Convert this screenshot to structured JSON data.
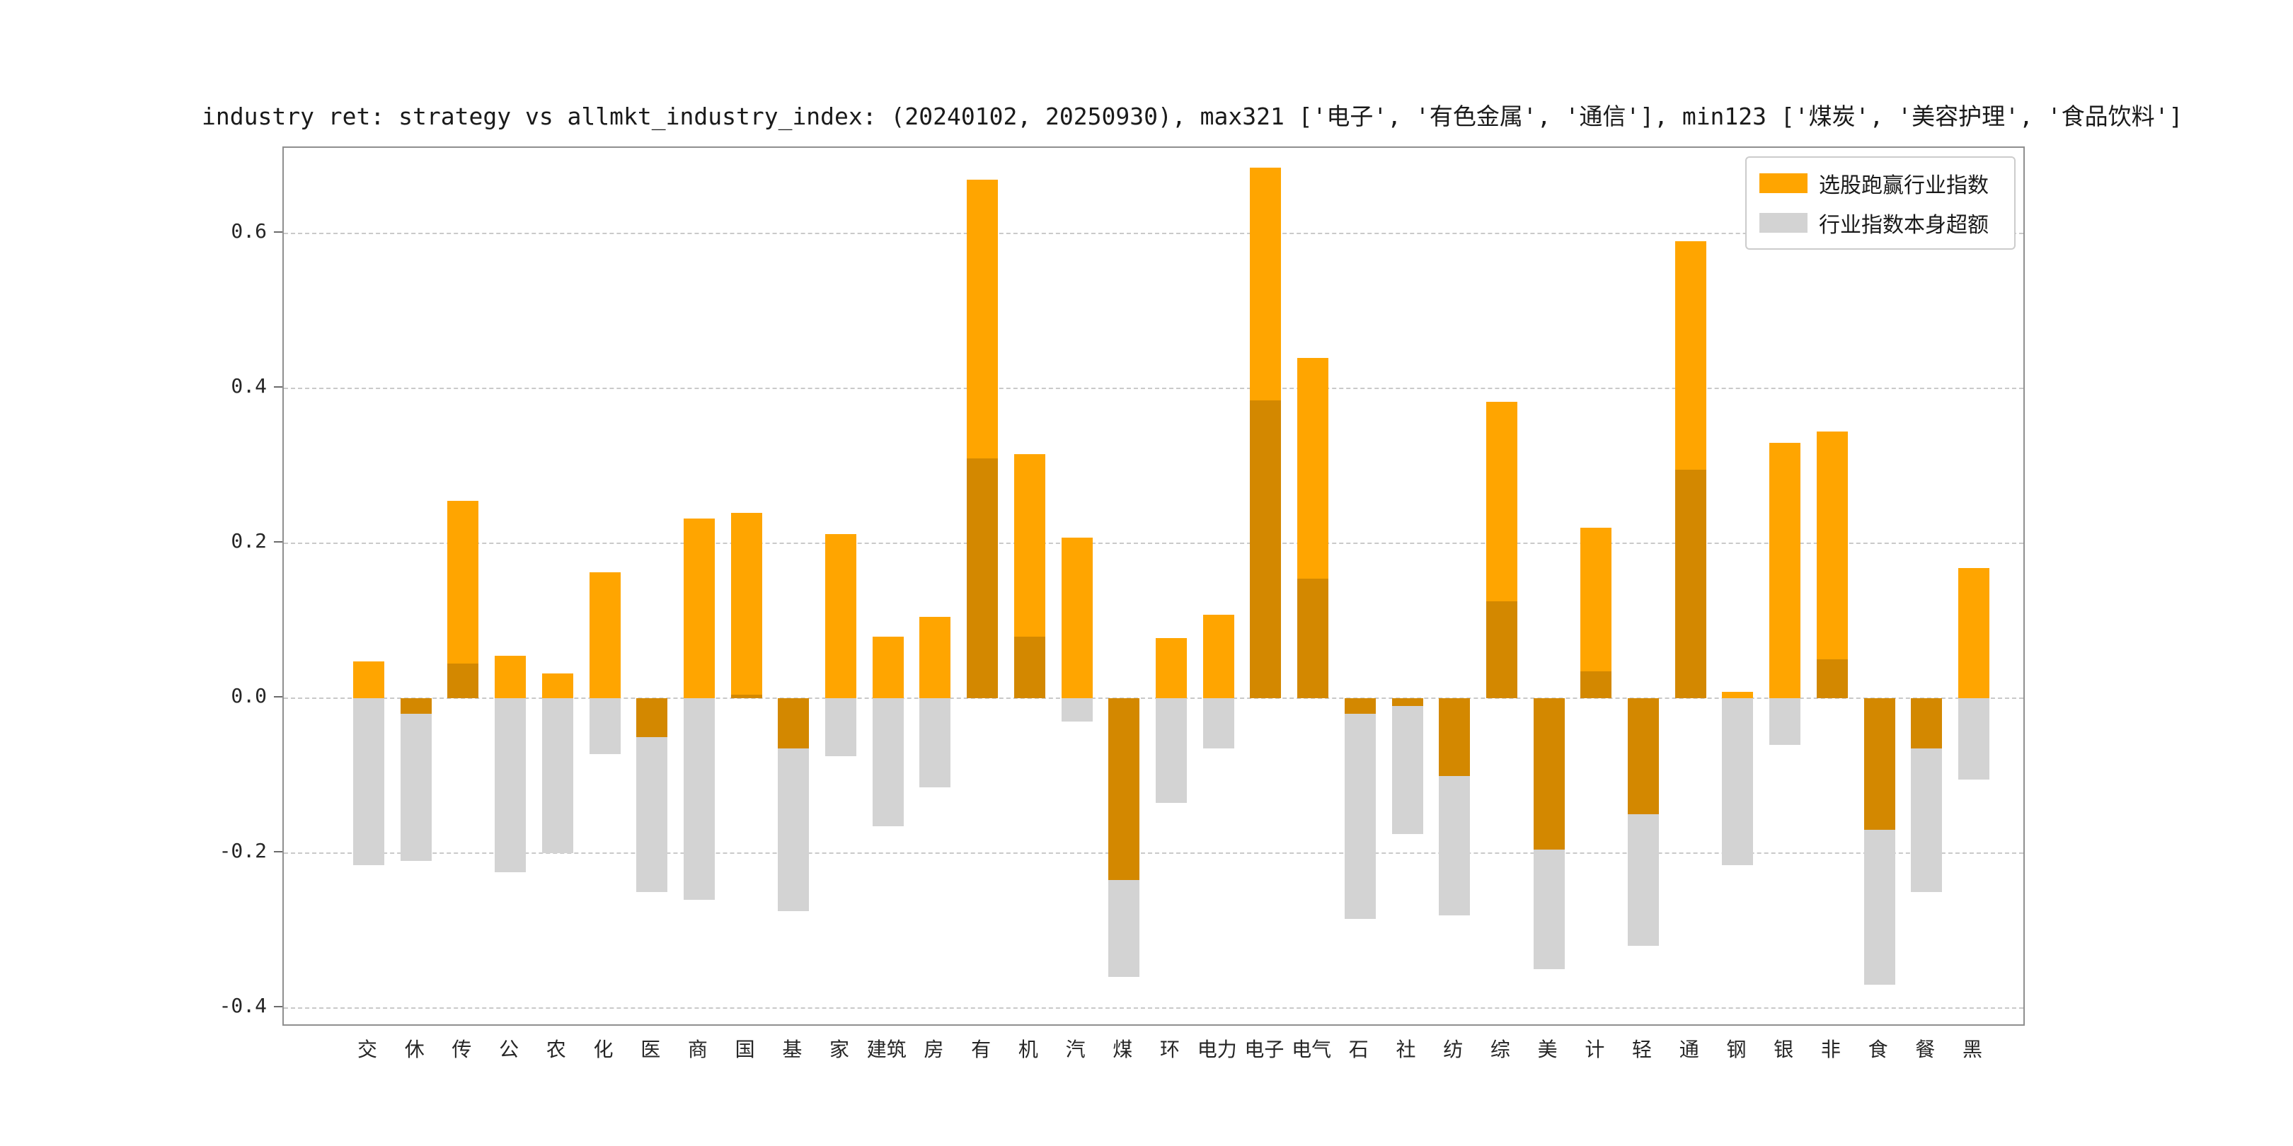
{
  "title": "industry ret: strategy vs allmkt_industry_index: (20240102, 20250930), max321 ['电子', '有色金属', '通信'], min123 ['煤炭', '美容护理', '食品饮料']",
  "legend": {
    "items": [
      {
        "label": "选股跑赢行业指数",
        "color": "#FFA500"
      },
      {
        "label": "行业指数本身超额",
        "color": "#D3D3D3"
      }
    ],
    "position": "upper-right"
  },
  "chart_data": {
    "type": "bar",
    "title": "industry ret: strategy vs allmkt_industry_index: (20240102, 20250930), max321 ['电子', '有色金属', '通信'], min123 ['煤炭', '美容护理', '食品饮料']",
    "categories": [
      "交",
      "休",
      "传",
      "公",
      "农",
      "化",
      "医",
      "商",
      "国",
      "基",
      "家",
      "建筑",
      "房",
      "有",
      "机",
      "汽",
      "煤",
      "环",
      "电力",
      "电子",
      "电气",
      "石",
      "社",
      "纺",
      "综",
      "美",
      "计",
      "轻",
      "通",
      "钢",
      "银",
      "非",
      "食",
      "餐",
      "黑"
    ],
    "series": [
      {
        "name": "选股跑赢行业指数",
        "color": "#FFA500",
        "values": [
          0.048,
          -0.02,
          0.255,
          0.055,
          0.032,
          0.163,
          -0.05,
          0.232,
          0.24,
          -0.065,
          0.212,
          0.08,
          0.105,
          0.67,
          0.315,
          0.208,
          -0.235,
          0.078,
          0.108,
          0.685,
          0.44,
          -0.02,
          -0.01,
          -0.1,
          0.383,
          -0.195,
          0.22,
          -0.15,
          0.59,
          0.008,
          0.33,
          0.345,
          -0.17,
          -0.065,
          0.168
        ]
      },
      {
        "name": "行业指数本身超额",
        "color": "#D3D3D3",
        "values": [
          -0.215,
          -0.21,
          0.045,
          -0.225,
          -0.2,
          -0.072,
          -0.25,
          -0.26,
          0.005,
          -0.275,
          -0.075,
          -0.165,
          -0.115,
          0.31,
          0.08,
          -0.03,
          -0.36,
          -0.135,
          -0.065,
          0.385,
          0.155,
          -0.285,
          -0.175,
          -0.28,
          0.125,
          -0.35,
          0.035,
          -0.32,
          0.295,
          -0.215,
          -0.06,
          0.05,
          -0.37,
          -0.25,
          -0.105
        ]
      }
    ],
    "xlabel": "",
    "ylabel": "",
    "yticks": [
      -0.4,
      -0.2,
      0.0,
      0.2,
      0.4,
      0.6
    ],
    "ylim": [
      -0.421,
      0.711
    ],
    "grid": "dashed-horizontal",
    "legend_position": "upper-right",
    "bar_style": "overlapping-with-alpha-multiply"
  }
}
